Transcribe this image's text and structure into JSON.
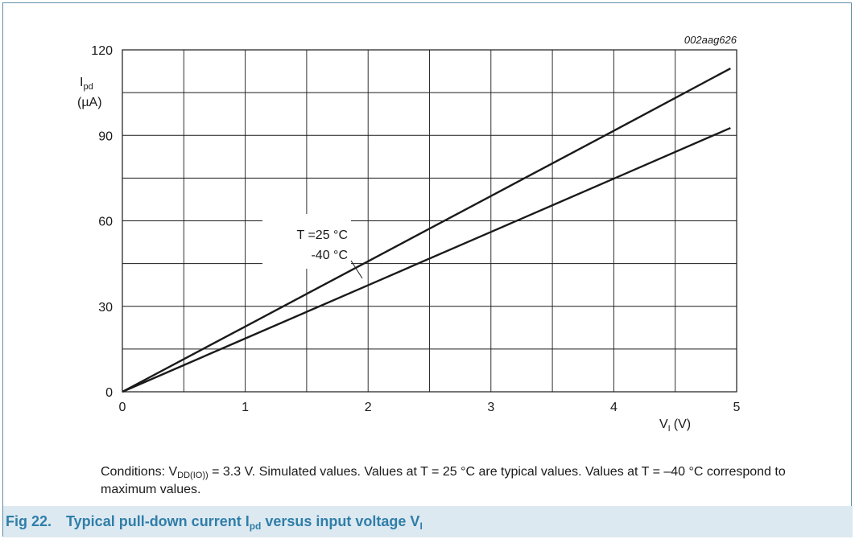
{
  "figure": {
    "number": "Fig 22.",
    "caption_parts": [
      "Typical pull-down current I",
      "pd",
      " versus input voltage V",
      "I"
    ],
    "conditions_parts": [
      "Conditions: V",
      "DD(IO))",
      " = 3.3 V. Simulated values. Values at T = 25 °C are typical values. Values at T = –40 °C correspond to maximum values."
    ]
  },
  "chart_data": {
    "type": "line",
    "code": "002aag626",
    "ylabel_main": "I",
    "ylabel_sub": "pd",
    "ylabel_unit": "(µA)",
    "xlabel_main": "V",
    "xlabel_sub": "I",
    "xlabel_unit": "(V)",
    "xlim": [
      0,
      5
    ],
    "ylim": [
      0,
      120
    ],
    "x_ticks": [
      0,
      1,
      2,
      3,
      4,
      5
    ],
    "y_ticks": [
      0,
      30,
      60,
      90,
      120
    ],
    "grid": true,
    "grid_step_x": 0.5,
    "grid_step_y": 15,
    "annotation_lines": [
      "T =25 °C",
      "-40 °C"
    ],
    "series": [
      {
        "label": "T =25 °C",
        "x": [
          0,
          1,
          2,
          3,
          4,
          4.95
        ],
        "y": [
          0,
          22.9,
          45.8,
          68.7,
          91.6,
          113.5
        ]
      },
      {
        "label": "-40 °C",
        "x": [
          0,
          1,
          2,
          3,
          4,
          4.95
        ],
        "y": [
          0,
          18.7,
          37.4,
          56.1,
          74.8,
          92.6
        ]
      }
    ],
    "line_color": "#1a1a1a"
  }
}
